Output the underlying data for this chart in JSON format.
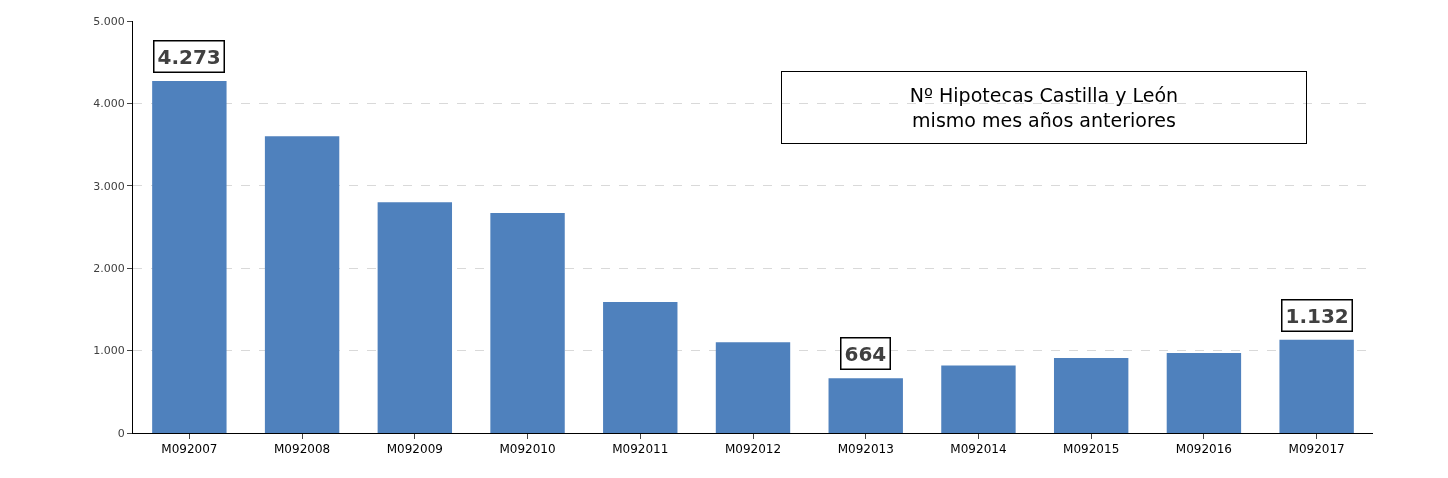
{
  "chart_data": {
    "type": "bar",
    "title": "Nº Hipotecas Castilla y León\nmismo mes años anteriores",
    "categories": [
      "M092007",
      "M092008",
      "M092009",
      "M092010",
      "M092011",
      "M092012",
      "M092013",
      "M092014",
      "M092015",
      "M092016",
      "M092017"
    ],
    "values": [
      4273,
      3600,
      2800,
      2670,
      1590,
      1100,
      664,
      820,
      910,
      970,
      1132
    ],
    "value_labels": [
      "4.273",
      null,
      null,
      null,
      null,
      null,
      "664",
      null,
      null,
      null,
      "1.132"
    ],
    "color": "#4f81bd",
    "ylim": [
      0,
      5000
    ],
    "yticks": [
      0,
      {
        "value": 1000,
        "label": "1.000"
      },
      {
        "value": 2000,
        "label": "2.000"
      },
      {
        "value": 3000,
        "label": "3.000"
      },
      {
        "value": 4000,
        "label": "4.000"
      },
      {
        "value": 5000,
        "label": "5.000"
      }
    ],
    "grid": "y"
  }
}
